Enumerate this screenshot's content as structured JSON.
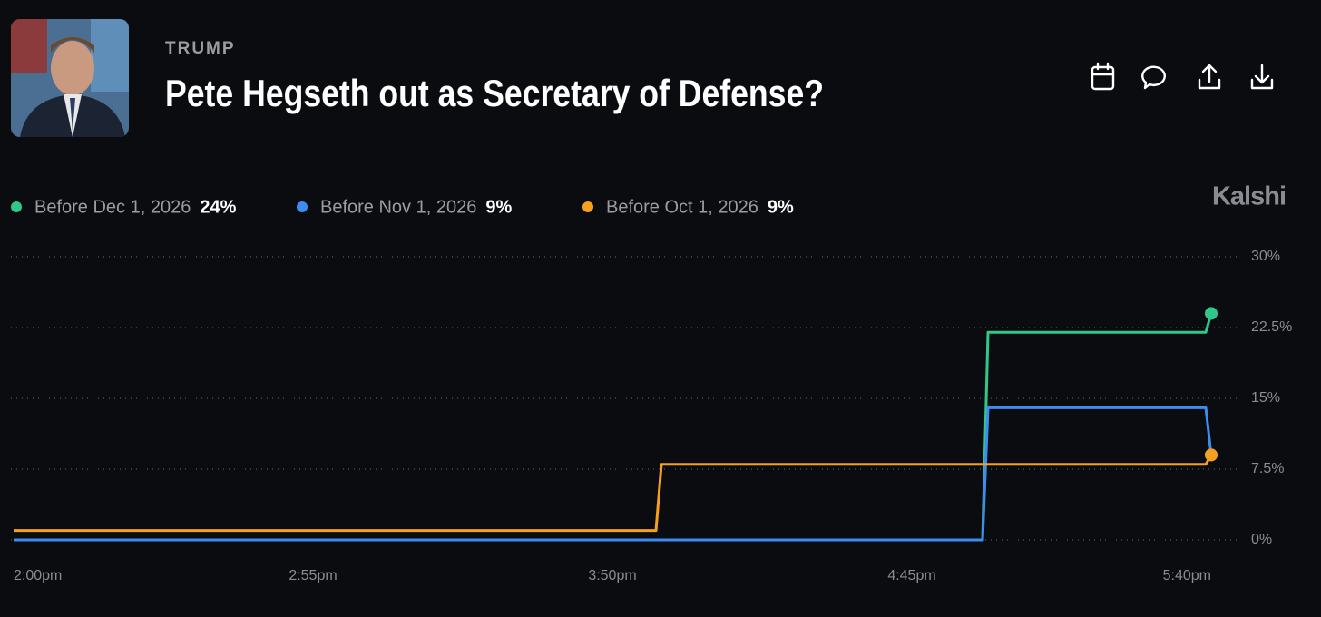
{
  "header": {
    "category": "TRUMP",
    "title": "Pete Hegseth out as Secretary of Defense?",
    "brand": "Kalshi"
  },
  "chart_data": {
    "type": "line",
    "x": [
      "2:00pm",
      "3:58pm",
      "3:59pm",
      "4:58pm",
      "4:59pm",
      "5:39pm",
      "5:40pm"
    ],
    "series": [
      {
        "name": "Before Dec 1, 2026",
        "color": "#2fc78a",
        "values": [
          0,
          0,
          0,
          0,
          22,
          22,
          24
        ],
        "value_labels": [
          null,
          null,
          null,
          null,
          null,
          null,
          "24%"
        ]
      },
      {
        "name": "Before Nov 1, 2026",
        "color": "#3d8cf0",
        "values": [
          0,
          0,
          0,
          0,
          14,
          14,
          9
        ],
        "value_labels": [
          null,
          null,
          null,
          null,
          null,
          null,
          "9%"
        ]
      },
      {
        "name": "Before Oct 1, 2026",
        "color": "#f5a01e",
        "values": [
          1,
          1,
          8,
          8,
          8,
          8,
          9
        ],
        "value_labels": [
          null,
          null,
          null,
          null,
          null,
          null,
          "9%"
        ]
      }
    ],
    "xlim": [
      "2:00pm",
      "5:40pm"
    ],
    "xticks": [
      "2:00pm",
      "2:55pm",
      "3:50pm",
      "4:45pm",
      "5:40pm"
    ],
    "ylim": [
      0,
      30
    ],
    "yticks": [
      {
        "value": 0,
        "label": "0%"
      },
      {
        "value": 7.5,
        "label": "7.5%"
      },
      {
        "value": 15,
        "label": "15%"
      },
      {
        "value": 22.5,
        "label": "22.5%"
      },
      {
        "value": 30,
        "label": "30%"
      }
    ],
    "grid": true
  }
}
